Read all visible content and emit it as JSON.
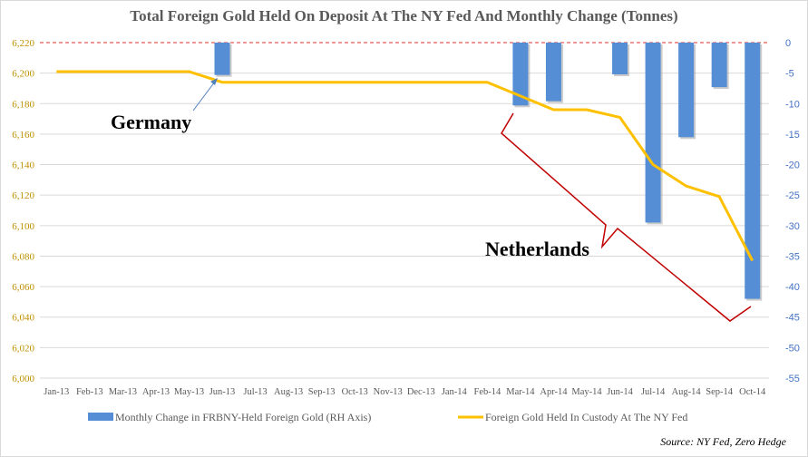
{
  "chart_data": {
    "type": "bar+line",
    "title": "Total Foreign Gold Held On Deposit At The NY Fed And Monthly Change (Tonnes)",
    "categories": [
      "Jan-13",
      "Feb-13",
      "Mar-13",
      "Apr-13",
      "May-13",
      "Jun-13",
      "Jul-13",
      "Aug-13",
      "Sep-13",
      "Oct-13",
      "Nov-13",
      "Dec-13",
      "Jan-14",
      "Feb-14",
      "Mar-14",
      "Apr-14",
      "May-14",
      "Jun-14",
      "Jul-14",
      "Aug-14",
      "Sep-14",
      "Oct-14"
    ],
    "series": [
      {
        "name": "Monthly Change in FRBNY-Held Foreign Gold (RH Axis)",
        "type": "bar",
        "axis": "right",
        "color": "#558ed5",
        "values": [
          0,
          0,
          0,
          0,
          0,
          -5.3,
          0,
          0,
          0,
          0,
          0,
          0,
          0,
          0,
          -10.3,
          -9.6,
          0,
          -5.2,
          -29.5,
          -15.5,
          -7.3,
          -42
        ]
      },
      {
        "name": "Foreign Gold Held In Custody At The NY Fed",
        "type": "line",
        "axis": "left",
        "color": "#ffc000",
        "values": [
          6201,
          6201,
          6201,
          6201,
          6201,
          6194,
          6194,
          6194,
          6194,
          6194,
          6194,
          6194,
          6194,
          6194,
          6185,
          6176,
          6176,
          6171,
          6140,
          6126,
          6119,
          6077
        ]
      }
    ],
    "left_axis": {
      "range": [
        6000,
        6220
      ],
      "ticks": [
        "6,000",
        "6,020",
        "6,040",
        "6,060",
        "6,080",
        "6,100",
        "6,120",
        "6,140",
        "6,160",
        "6,180",
        "6,200",
        "6,220"
      ],
      "color": "#bf9000"
    },
    "right_axis": {
      "range": [
        -55,
        0
      ],
      "ticks": [
        "-55",
        "-50",
        "-45",
        "-40",
        "-35",
        "-30",
        "-25",
        "-20",
        "-15",
        "-10",
        "-5",
        "0"
      ],
      "color": "#4472c4"
    },
    "grid": true,
    "legend": "bottom",
    "annotations": [
      "Germany",
      "Netherlands"
    ],
    "source": "Source: NY Fed, Zero Hedge"
  }
}
